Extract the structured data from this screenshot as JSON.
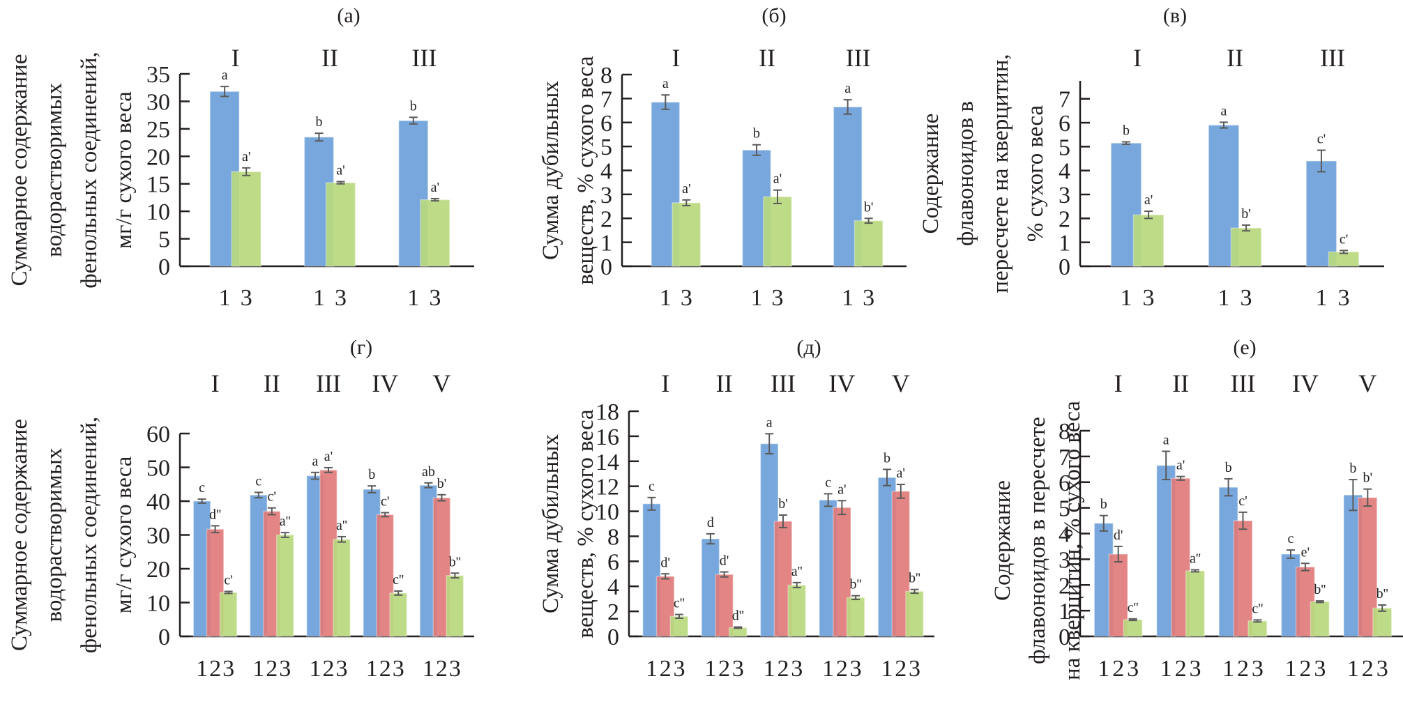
{
  "colors": {
    "series1": "#6b9fd9",
    "series2": "#e07b7a",
    "series3": "#b9d97e",
    "axis": "#231f20",
    "error": "#5a5a5a"
  },
  "chart_data": [
    {
      "id": "a",
      "type": "bar",
      "title": "(а)",
      "ylabel": [
        "Суммарное содержание",
        "водорастворимых",
        "фенольных соединений,",
        "мг/г сухого веса"
      ],
      "ylim": [
        0,
        35
      ],
      "yticks": [
        0,
        5,
        10,
        15,
        20,
        25,
        30,
        35
      ],
      "groups": [
        "I",
        "II",
        "III"
      ],
      "series_labels": [
        "1",
        "3"
      ],
      "series_colors": [
        "series1",
        "series3"
      ],
      "values": [
        [
          31.8,
          17.2
        ],
        [
          23.5,
          15.2
        ],
        [
          26.5,
          12.1
        ]
      ],
      "errors": [
        [
          0.9,
          0.7
        ],
        [
          0.7,
          0.2
        ],
        [
          0.6,
          0.2
        ]
      ],
      "sig": [
        [
          "a",
          "a'"
        ],
        [
          "b",
          "a'"
        ],
        [
          "b",
          "a'"
        ]
      ]
    },
    {
      "id": "b",
      "type": "bar",
      "title": "(б)",
      "ylabel": [
        "Сумма дубильных",
        "веществ, % сухого веса"
      ],
      "ylim": [
        0,
        8
      ],
      "yticks": [
        0,
        1,
        2,
        3,
        4,
        5,
        6,
        7,
        8
      ],
      "groups": [
        "I",
        "II",
        "III"
      ],
      "series_labels": [
        "1",
        "3"
      ],
      "series_colors": [
        "series1",
        "series3"
      ],
      "values": [
        [
          6.85,
          2.65
        ],
        [
          4.85,
          2.9
        ],
        [
          6.65,
          1.9
        ]
      ],
      "errors": [
        [
          0.3,
          0.12
        ],
        [
          0.22,
          0.28
        ],
        [
          0.3,
          0.1
        ]
      ],
      "sig": [
        [
          "a",
          "a'"
        ],
        [
          "b",
          "a'"
        ],
        [
          "a",
          "b'"
        ]
      ]
    },
    {
      "id": "v",
      "type": "bar",
      "title": "(в)",
      "ylabel": [
        "Содержание",
        "флавоноидов в",
        "пересчете на кверцитин,",
        "% сухого веса"
      ],
      "ylim": [
        0,
        7.75
      ],
      "yticks": [
        0,
        1,
        2,
        3,
        4,
        5,
        6,
        7
      ],
      "groups": [
        "I",
        "II",
        "III"
      ],
      "series_labels": [
        "1",
        "3"
      ],
      "series_colors": [
        "series1",
        "series3"
      ],
      "values": [
        [
          5.15,
          2.15
        ],
        [
          5.9,
          1.6
        ],
        [
          4.4,
          0.6
        ]
      ],
      "errors": [
        [
          0.05,
          0.15
        ],
        [
          0.12,
          0.12
        ],
        [
          0.45,
          0.06
        ]
      ],
      "sig": [
        [
          "b",
          "a'"
        ],
        [
          "a",
          "b'"
        ],
        [
          "c'",
          "c'"
        ]
      ]
    },
    {
      "id": "g",
      "type": "bar",
      "title": "(г)",
      "ylabel": [
        "Суммарное содержание",
        "водорастворимых",
        "фенольных соединений,",
        "мг/г сухого веса"
      ],
      "ylim": [
        0,
        60
      ],
      "yticks": [
        0,
        10,
        20,
        30,
        40,
        50,
        60
      ],
      "groups": [
        "I",
        "II",
        "III",
        "IV",
        "V"
      ],
      "series_labels": [
        "1",
        "2",
        "3"
      ],
      "series_colors": [
        "series1",
        "series2",
        "series3"
      ],
      "values": [
        [
          40.0,
          31.7,
          13.0
        ],
        [
          41.8,
          37.0,
          30.0
        ],
        [
          47.5,
          49.2,
          28.7
        ],
        [
          43.5,
          36.0,
          12.8
        ],
        [
          44.7,
          41.0,
          18.0
        ]
      ],
      "errors": [
        [
          0.6,
          1.0,
          0.3
        ],
        [
          0.8,
          1.0,
          0.7
        ],
        [
          1.0,
          0.7,
          0.8
        ],
        [
          1.0,
          0.6,
          0.6
        ],
        [
          0.7,
          0.9,
          0.7
        ]
      ],
      "sig": [
        [
          "c",
          "d''",
          "c'"
        ],
        [
          "c",
          "c'",
          "a''"
        ],
        [
          "a",
          "a'",
          "a''"
        ],
        [
          "b",
          "c'",
          "c''"
        ],
        [
          "ab",
          "b'",
          "b''"
        ]
      ]
    },
    {
      "id": "d",
      "type": "bar",
      "title": "(д)",
      "ylabel": [
        "Сумма дубильных",
        "веществ, % сухого веса"
      ],
      "ylim": [
        0,
        18
      ],
      "yticks": [
        0,
        2,
        4,
        6,
        8,
        10,
        12,
        14,
        16,
        18
      ],
      "groups": [
        "I",
        "II",
        "III",
        "IV",
        "V"
      ],
      "series_labels": [
        "1",
        "2",
        "3"
      ],
      "series_colors": [
        "series1",
        "series2",
        "series3"
      ],
      "values": [
        [
          10.6,
          4.8,
          1.6
        ],
        [
          7.8,
          4.95,
          0.7
        ],
        [
          15.4,
          9.2,
          4.1
        ],
        [
          10.9,
          10.3,
          3.1
        ],
        [
          12.7,
          11.6,
          3.6
        ]
      ],
      "errors": [
        [
          0.5,
          0.2,
          0.15
        ],
        [
          0.4,
          0.2,
          0.05
        ],
        [
          0.8,
          0.5,
          0.2
        ],
        [
          0.5,
          0.55,
          0.15
        ],
        [
          0.65,
          0.55,
          0.15
        ]
      ],
      "sig": [
        [
          "c",
          "d'",
          "c''"
        ],
        [
          "d",
          "d'",
          "d''"
        ],
        [
          "a",
          "b'",
          "a''"
        ],
        [
          "c",
          "a'",
          "b''"
        ],
        [
          "b",
          "a'",
          "b''"
        ]
      ]
    },
    {
      "id": "e",
      "type": "bar",
      "title": "(е)",
      "ylabel": [
        "Содержание",
        "флавоноидов в пересчете",
        "на кверцитин, % сухого веса"
      ],
      "ylim": [
        0,
        8
      ],
      "yticks": [
        0,
        1,
        2,
        3,
        4,
        5,
        6,
        7,
        8
      ],
      "groups": [
        "I",
        "II",
        "III",
        "IV",
        "V"
      ],
      "series_labels": [
        "1",
        "2",
        "3"
      ],
      "series_colors": [
        "series1",
        "series2",
        "series3"
      ],
      "values": [
        [
          4.4,
          3.2,
          0.65
        ],
        [
          6.65,
          6.15,
          2.55
        ],
        [
          5.8,
          4.5,
          0.6
        ],
        [
          3.2,
          2.7,
          1.35
        ],
        [
          5.5,
          5.4,
          1.1
        ]
      ],
      "errors": [
        [
          0.3,
          0.3,
          0.03
        ],
        [
          0.55,
          0.07,
          0.04
        ],
        [
          0.33,
          0.33,
          0.04
        ],
        [
          0.16,
          0.14,
          0.03
        ],
        [
          0.6,
          0.33,
          0.12
        ]
      ],
      "sig": [
        [
          "b",
          "d'",
          "c''"
        ],
        [
          "a",
          "a'",
          "a''"
        ],
        [
          "b",
          "c'",
          "c''"
        ],
        [
          "c",
          "e'",
          "b''"
        ],
        [
          "b",
          "b'",
          "b''"
        ]
      ]
    }
  ]
}
